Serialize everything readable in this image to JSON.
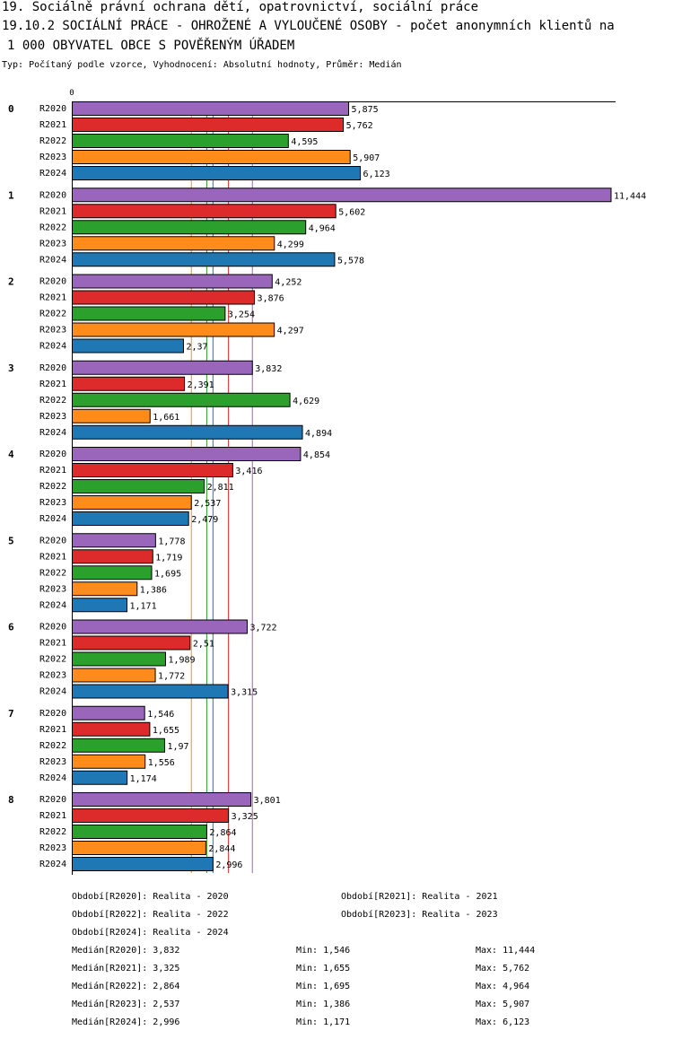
{
  "title_line1": "19. Sociálně právní ochrana dětí, opatrovnictví, sociální práce",
  "title_line2": "19.10.2 SOCIÁLNÍ PRÁCE - OHROŽENÉ A VYLOUČENÉ OSOBY - počet anonymních klientů na",
  "title_line3": "1 000 OBYVATEL OBCE S POVĚŘENÝM ÚŘADEM",
  "subtitle": "Typ: Počítaný podle vzorce, Vyhodnocení: Absolutní hodnoty, Průměr: Medián",
  "chart_data": {
    "type": "bar",
    "orientation": "horizontal",
    "axis_zero_label": "0",
    "xlim": [
      0,
      11.444
    ],
    "categories": [
      "0",
      "1",
      "2",
      "3",
      "4",
      "5",
      "6",
      "7",
      "8"
    ],
    "series": [
      {
        "name": "R2020",
        "color": "#9966bb",
        "values": [
          5.875,
          11.444,
          4.252,
          3.832,
          4.854,
          1.778,
          3.722,
          1.546,
          3.801
        ],
        "labels": [
          "5,875",
          "11,444",
          "4,252",
          "3,832",
          "4,854",
          "1,778",
          "3,722",
          "1,546",
          "3,801"
        ],
        "median": 3.832
      },
      {
        "name": "R2021",
        "color": "#dd2a2a",
        "values": [
          5.762,
          5.602,
          3.876,
          2.391,
          3.416,
          1.719,
          2.51,
          1.655,
          3.325
        ],
        "labels": [
          "5,762",
          "5,602",
          "3,876",
          "2,391",
          "3,416",
          "1,719",
          "2,51",
          "1,655",
          "3,325"
        ],
        "median": 3.325
      },
      {
        "name": "R2022",
        "color": "#2ca02c",
        "values": [
          4.595,
          4.964,
          3.254,
          4.629,
          2.811,
          1.695,
          1.989,
          1.97,
          2.864
        ],
        "labels": [
          "4,595",
          "4,964",
          "3,254",
          "4,629",
          "2,811",
          "1,695",
          "1,989",
          "1,97",
          "2,864"
        ],
        "median": 2.864
      },
      {
        "name": "R2023",
        "color": "#ff8c1a",
        "values": [
          5.907,
          4.299,
          4.297,
          1.661,
          2.537,
          1.386,
          1.772,
          1.556,
          2.844
        ],
        "labels": [
          "5,907",
          "4,299",
          "4,297",
          "1,661",
          "2,537",
          "1,386",
          "1,772",
          "1,556",
          "2,844"
        ],
        "median": 2.537
      },
      {
        "name": "R2024",
        "color": "#1f77b4",
        "values": [
          6.123,
          5.578,
          2.37,
          4.894,
          2.479,
          1.171,
          3.315,
          1.174,
          2.996
        ],
        "labels": [
          "6,123",
          "5,578",
          "2,37",
          "4,894",
          "2,479",
          "1,171",
          "3,315",
          "1,174",
          "2,996"
        ],
        "median": 2.996
      }
    ],
    "median_lines": [
      "R2020",
      "R2021",
      "R2022",
      "R2023",
      "R2024"
    ]
  },
  "footer": {
    "periods": [
      "Období[R2020]: Realita - 2020",
      "Období[R2021]: Realita - 2021",
      "Období[R2022]: Realita - 2022",
      "Období[R2023]: Realita - 2023",
      "Období[R2024]: Realita - 2024"
    ],
    "stats": [
      {
        "median": "Medián[R2020]: 3,832",
        "min": "Min: 1,546",
        "max": "Max: 11,444"
      },
      {
        "median": "Medián[R2021]: 3,325",
        "min": "Min: 1,655",
        "max": "Max: 5,762"
      },
      {
        "median": "Medián[R2022]: 2,864",
        "min": "Min: 1,695",
        "max": "Max: 4,964"
      },
      {
        "median": "Medián[R2023]: 2,537",
        "min": "Min: 1,386",
        "max": "Max: 5,907"
      },
      {
        "median": "Medián[R2024]: 2,996",
        "min": "Min: 1,171",
        "max": "Max: 6,123"
      }
    ]
  }
}
